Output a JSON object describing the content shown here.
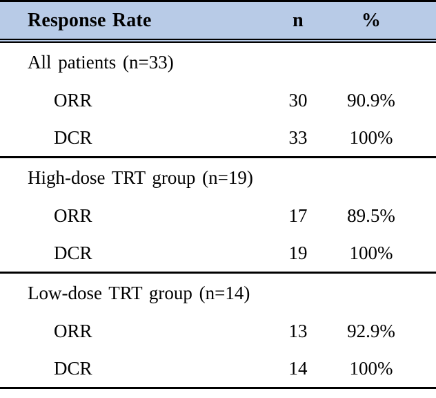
{
  "colors": {
    "header_bg": "#b8cbe7",
    "rule": "#000000",
    "text": "#000000",
    "background": "#ffffff"
  },
  "table": {
    "header": {
      "label": "Response Rate",
      "n": "n",
      "pct": "%"
    },
    "sections": [
      {
        "group_label": "All patients (n=33)",
        "rows": [
          {
            "label": "ORR",
            "n": "30",
            "pct": "90.9%"
          },
          {
            "label": "DCR",
            "n": "33",
            "pct": "100%"
          }
        ]
      },
      {
        "group_label": "High-dose TRT group (n=19)",
        "rows": [
          {
            "label": "ORR",
            "n": "17",
            "pct": "89.5%"
          },
          {
            "label": "DCR",
            "n": "19",
            "pct": "100%"
          }
        ]
      },
      {
        "group_label": "Low-dose TRT group (n=14)",
        "rows": [
          {
            "label": "ORR",
            "n": "13",
            "pct": "92.9%"
          },
          {
            "label": "DCR",
            "n": "14",
            "pct": "100%"
          }
        ]
      }
    ]
  },
  "chart_data": {
    "type": "table",
    "title": "Response Rate",
    "columns": [
      "Response Rate",
      "n",
      "%"
    ],
    "rows": [
      {
        "label": "All patients (n=33)",
        "n": null,
        "pct": null,
        "is_group": true
      },
      {
        "label": "ORR",
        "n": 30,
        "pct": "90.9%",
        "is_group": false
      },
      {
        "label": "DCR",
        "n": 33,
        "pct": "100%",
        "is_group": false
      },
      {
        "label": "High-dose TRT group (n=19)",
        "n": null,
        "pct": null,
        "is_group": true
      },
      {
        "label": "ORR",
        "n": 17,
        "pct": "89.5%",
        "is_group": false
      },
      {
        "label": "DCR",
        "n": 19,
        "pct": "100%",
        "is_group": false
      },
      {
        "label": "Low-dose TRT group (n=14)",
        "n": null,
        "pct": null,
        "is_group": true
      },
      {
        "label": "ORR",
        "n": 13,
        "pct": "92.9%",
        "is_group": false
      },
      {
        "label": "DCR",
        "n": 14,
        "pct": "100%",
        "is_group": false
      }
    ]
  }
}
